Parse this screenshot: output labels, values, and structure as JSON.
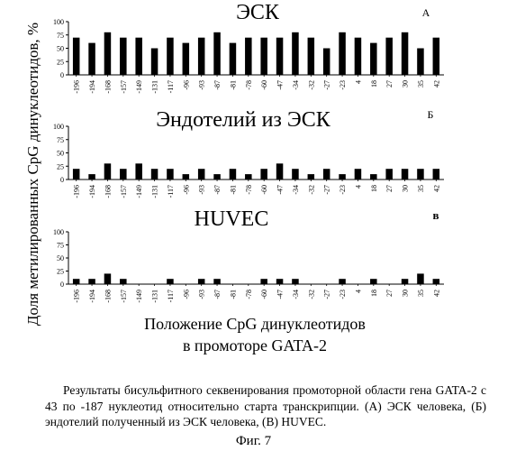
{
  "y_axis_label": "Доля метилированных CpG динуклеотидов, %",
  "x_axis_label_line1": "Положение CpG динуклеотидов",
  "x_axis_label_line2": "в промоторе GATA-2",
  "caption": "Результаты бисульфитного секвенирования промоторной области гена GATA-2 с 43 по -187 нуклеотид относительно старта транскрипции. (А) ЭСК человека, (Б) эндотелий полученный из ЭСК человека, (В) HUVEC.",
  "figure_label": "Фиг. 7",
  "chart_data": [
    {
      "type": "bar",
      "title": "ЭСК",
      "panel_letter": "А",
      "categories": [
        "-196",
        "-194",
        "-168",
        "-157",
        "-149",
        "-131",
        "-117",
        "-96",
        "-93",
        "-87",
        "-81",
        "-78",
        "-60",
        "-47",
        "-34",
        "-32",
        "-27",
        "-23",
        "4",
        "18",
        "27",
        "30",
        "35",
        "42"
      ],
      "values": [
        70,
        60,
        80,
        70,
        70,
        50,
        70,
        60,
        70,
        80,
        60,
        70,
        70,
        70,
        80,
        70,
        50,
        80,
        70,
        60,
        70,
        80,
        50,
        70
      ],
      "ylim": [
        0,
        100
      ],
      "yticks": [
        0,
        25,
        50,
        75,
        100
      ]
    },
    {
      "type": "bar",
      "title": "Эндотелий из ЭСК",
      "panel_letter": "Б",
      "categories": [
        "-196",
        "-194",
        "-168",
        "-157",
        "-149",
        "-131",
        "-117",
        "-96",
        "-93",
        "-87",
        "-81",
        "-78",
        "-60",
        "-47",
        "-34",
        "-32",
        "-27",
        "-23",
        "4",
        "18",
        "27",
        "30",
        "35",
        "42"
      ],
      "values": [
        20,
        10,
        30,
        20,
        30,
        20,
        20,
        10,
        20,
        10,
        20,
        10,
        20,
        30,
        20,
        10,
        20,
        10,
        20,
        10,
        20,
        20,
        20,
        20
      ],
      "ylim": [
        0,
        100
      ],
      "yticks": [
        0,
        25,
        50,
        75,
        100
      ]
    },
    {
      "type": "bar",
      "title": "HUVEC",
      "panel_letter": "в",
      "categories": [
        "-196",
        "-194",
        "-168",
        "-157",
        "-149",
        "-131",
        "-117",
        "-96",
        "-93",
        "-87",
        "-81",
        "-78",
        "-60",
        "-47",
        "-34",
        "-32",
        "-27",
        "-23",
        "4",
        "18",
        "27",
        "30",
        "35",
        "42"
      ],
      "values": [
        10,
        10,
        20,
        10,
        0,
        0,
        10,
        0,
        10,
        10,
        0,
        0,
        10,
        10,
        10,
        0,
        0,
        10,
        0,
        10,
        0,
        10,
        20,
        10
      ],
      "ylim": [
        0,
        100
      ],
      "yticks": [
        0,
        25,
        50,
        75,
        100
      ]
    }
  ]
}
